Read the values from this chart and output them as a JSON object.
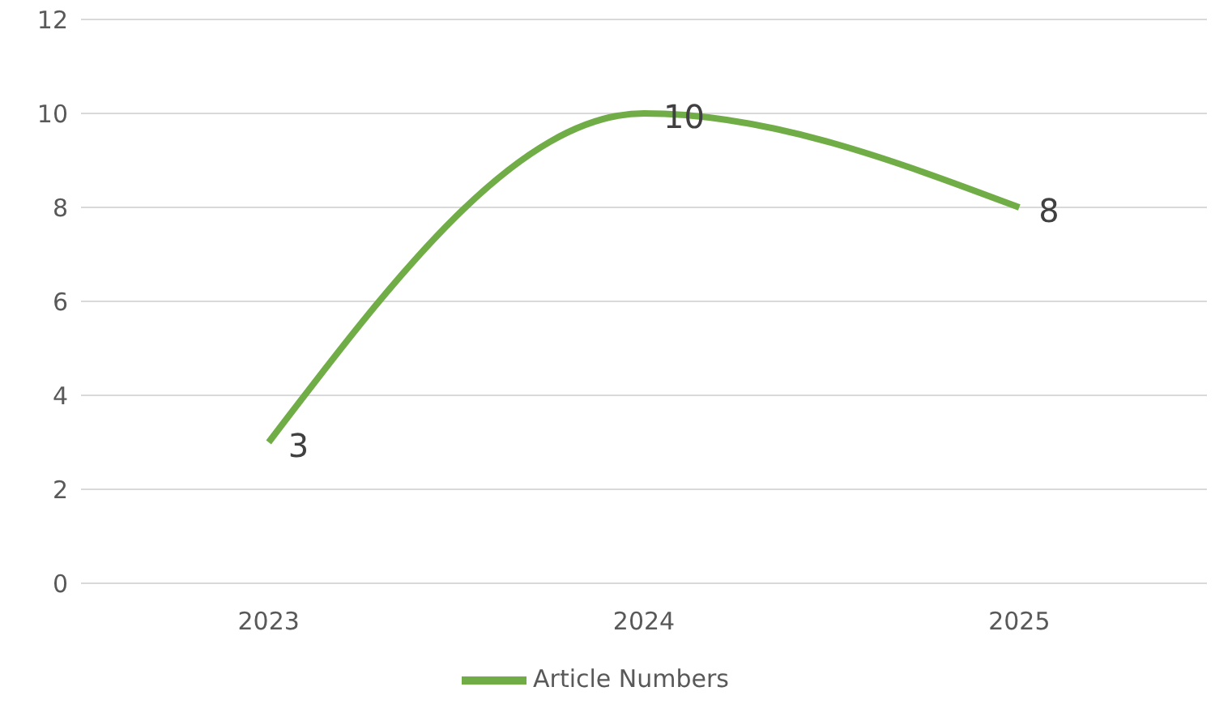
{
  "chart_data": {
    "type": "line",
    "categories": [
      "2023",
      "2024",
      "2025"
    ],
    "series": [
      {
        "name": "Article Numbers",
        "color": "#70ad47",
        "values": [
          3,
          10,
          8
        ]
      }
    ],
    "ylim": [
      0,
      12
    ],
    "yticks": [
      0,
      2,
      4,
      6,
      8,
      10,
      12
    ],
    "grid": "y",
    "legend": "bottom",
    "marker": "none",
    "line_style": "solid",
    "data_labels": true
  }
}
